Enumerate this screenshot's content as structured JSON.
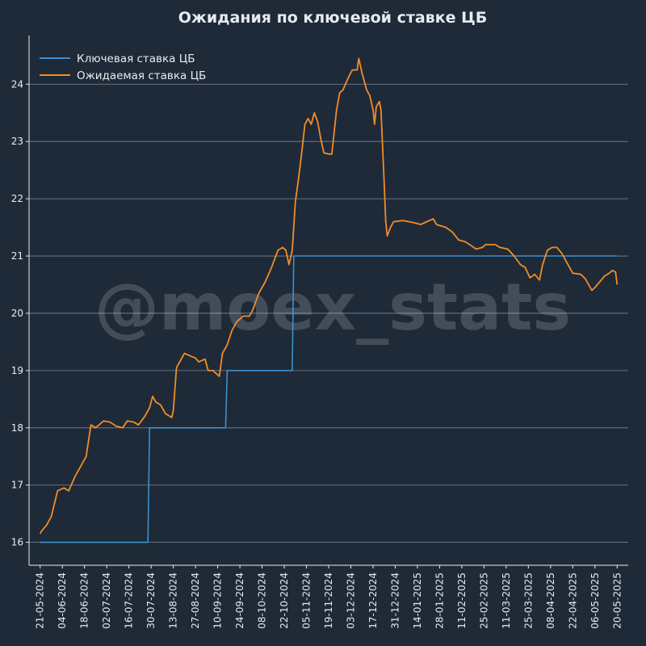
{
  "chart_data": {
    "type": "line",
    "title": "Ожидания по ключевой ставке ЦБ",
    "watermark": "@moex_stats",
    "xlabel": "",
    "ylabel": "",
    "ylim": [
      15.6,
      24.85
    ],
    "xlim": [
      "2024-05-14",
      "2025-05-27"
    ],
    "y_ticks": [
      16,
      17,
      18,
      19,
      20,
      21,
      22,
      23,
      24
    ],
    "x_ticks": [
      "21-05-2024",
      "04-06-2024",
      "18-06-2024",
      "02-07-2024",
      "16-07-2024",
      "30-07-2024",
      "13-08-2024",
      "27-08-2024",
      "10-09-2024",
      "24-09-2024",
      "08-10-2024",
      "22-10-2024",
      "05-11-2024",
      "19-11-2024",
      "03-12-2024",
      "17-12-2024",
      "31-12-2024",
      "14-01-2025",
      "28-01-2025",
      "11-02-2025",
      "25-02-2025",
      "11-03-2025",
      "25-03-2025",
      "08-04-2025",
      "22-04-2025",
      "06-05-2025",
      "20-05-2025"
    ],
    "grid": "horizontal",
    "legend_position": "top-left",
    "colors": {
      "background": "#1e2a38",
      "grid": "#7b8794",
      "axis": "#e6ebf0",
      "text": "#e6ebf0"
    },
    "series": [
      {
        "name": "Ключевая ставка ЦБ",
        "color": "#3d8fd1",
        "step": true,
        "points": [
          [
            "2024-05-21",
            16
          ],
          [
            "2024-07-28",
            16
          ],
          [
            "2024-07-29",
            18
          ],
          [
            "2024-09-15",
            18
          ],
          [
            "2024-09-16",
            19
          ],
          [
            "2024-10-27",
            19
          ],
          [
            "2024-10-28",
            21
          ],
          [
            "2025-05-20",
            21
          ]
        ]
      },
      {
        "name": "Ожидаемая ставка ЦБ",
        "color": "#f28c28",
        "step": false,
        "points": [
          [
            "2024-05-21",
            16.15
          ],
          [
            "2024-05-22",
            16.2
          ],
          [
            "2024-05-25",
            16.3
          ],
          [
            "2024-05-28",
            16.45
          ],
          [
            "2024-06-01",
            16.9
          ],
          [
            "2024-06-05",
            16.95
          ],
          [
            "2024-06-08",
            16.9
          ],
          [
            "2024-06-12",
            17.15
          ],
          [
            "2024-06-16",
            17.35
          ],
          [
            "2024-06-19",
            17.5
          ],
          [
            "2024-06-22",
            18.05
          ],
          [
            "2024-06-25",
            18.0
          ],
          [
            "2024-06-30",
            18.12
          ],
          [
            "2024-07-04",
            18.1
          ],
          [
            "2024-07-08",
            18.03
          ],
          [
            "2024-07-12",
            18.0
          ],
          [
            "2024-07-15",
            18.12
          ],
          [
            "2024-07-19",
            18.1
          ],
          [
            "2024-07-22",
            18.05
          ],
          [
            "2024-07-26",
            18.2
          ],
          [
            "2024-07-29",
            18.35
          ],
          [
            "2024-07-31",
            18.55
          ],
          [
            "2024-08-02",
            18.45
          ],
          [
            "2024-08-05",
            18.4
          ],
          [
            "2024-08-08",
            18.25
          ],
          [
            "2024-08-12",
            18.18
          ],
          [
            "2024-08-13",
            18.3
          ],
          [
            "2024-08-15",
            19.05
          ],
          [
            "2024-08-17",
            19.15
          ],
          [
            "2024-08-20",
            19.3
          ],
          [
            "2024-08-24",
            19.25
          ],
          [
            "2024-08-27",
            19.22
          ],
          [
            "2024-08-29",
            19.15
          ],
          [
            "2024-09-02",
            19.2
          ],
          [
            "2024-09-04",
            19.0
          ],
          [
            "2024-09-07",
            19.0
          ],
          [
            "2024-09-11",
            18.9
          ],
          [
            "2024-09-13",
            19.3
          ],
          [
            "2024-09-16",
            19.45
          ],
          [
            "2024-09-19",
            19.7
          ],
          [
            "2024-09-22",
            19.85
          ],
          [
            "2024-09-26",
            19.95
          ],
          [
            "2024-09-30",
            19.95
          ],
          [
            "2024-10-02",
            20.05
          ],
          [
            "2024-10-06",
            20.35
          ],
          [
            "2024-10-10",
            20.55
          ],
          [
            "2024-10-14",
            20.8
          ],
          [
            "2024-10-18",
            21.1
          ],
          [
            "2024-10-21",
            21.15
          ],
          [
            "2024-10-23",
            21.1
          ],
          [
            "2024-10-25",
            20.85
          ],
          [
            "2024-10-27",
            21.1
          ],
          [
            "2024-10-29",
            21.95
          ],
          [
            "2024-10-31",
            22.35
          ],
          [
            "2024-11-02",
            22.8
          ],
          [
            "2024-11-04",
            23.3
          ],
          [
            "2024-11-06",
            23.4
          ],
          [
            "2024-11-08",
            23.3
          ],
          [
            "2024-11-10",
            23.5
          ],
          [
            "2024-11-12",
            23.35
          ],
          [
            "2024-11-14",
            23.05
          ],
          [
            "2024-11-16",
            22.8
          ],
          [
            "2024-11-19",
            22.78
          ],
          [
            "2024-11-21",
            22.78
          ],
          [
            "2024-11-24",
            23.55
          ],
          [
            "2024-11-26",
            23.85
          ],
          [
            "2024-11-28",
            23.9
          ],
          [
            "2024-12-02",
            24.15
          ],
          [
            "2024-12-04",
            24.25
          ],
          [
            "2024-12-07",
            24.25
          ],
          [
            "2024-12-08",
            24.45
          ],
          [
            "2024-12-10",
            24.2
          ],
          [
            "2024-12-13",
            23.9
          ],
          [
            "2024-12-15",
            23.8
          ],
          [
            "2024-12-17",
            23.55
          ],
          [
            "2024-12-18",
            23.3
          ],
          [
            "2024-12-19",
            23.6
          ],
          [
            "2024-12-21",
            23.7
          ],
          [
            "2024-12-22",
            23.55
          ],
          [
            "2024-12-24",
            22.3
          ],
          [
            "2024-12-25",
            21.6
          ],
          [
            "2024-12-26",
            21.35
          ],
          [
            "2024-12-28",
            21.5
          ],
          [
            "2024-12-30",
            21.6
          ],
          [
            "2025-01-05",
            21.62
          ],
          [
            "2025-01-12",
            21.58
          ],
          [
            "2025-01-16",
            21.55
          ],
          [
            "2025-01-20",
            21.6
          ],
          [
            "2025-01-24",
            21.65
          ],
          [
            "2025-01-26",
            21.55
          ],
          [
            "2025-02-01",
            21.5
          ],
          [
            "2025-02-05",
            21.42
          ],
          [
            "2025-02-09",
            21.28
          ],
          [
            "2025-02-13",
            21.25
          ],
          [
            "2025-02-17",
            21.18
          ],
          [
            "2025-02-20",
            21.12
          ],
          [
            "2025-02-24",
            21.15
          ],
          [
            "2025-02-26",
            21.2
          ],
          [
            "2025-03-04",
            21.2
          ],
          [
            "2025-03-07",
            21.15
          ],
          [
            "2025-03-12",
            21.12
          ],
          [
            "2025-03-16",
            21.0
          ],
          [
            "2025-03-20",
            20.85
          ],
          [
            "2025-03-23",
            20.8
          ],
          [
            "2025-03-26",
            20.62
          ],
          [
            "2025-03-29",
            20.68
          ],
          [
            "2025-04-01",
            20.58
          ],
          [
            "2025-04-03",
            20.85
          ],
          [
            "2025-04-06",
            21.1
          ],
          [
            "2025-04-09",
            21.15
          ],
          [
            "2025-04-12",
            21.15
          ],
          [
            "2025-04-15",
            21.05
          ],
          [
            "2025-04-19",
            20.85
          ],
          [
            "2025-04-22",
            20.7
          ],
          [
            "2025-04-27",
            20.68
          ],
          [
            "2025-04-30",
            20.6
          ],
          [
            "2025-05-02",
            20.5
          ],
          [
            "2025-05-04",
            20.4
          ],
          [
            "2025-05-06",
            20.45
          ],
          [
            "2025-05-09",
            20.55
          ],
          [
            "2025-05-12",
            20.65
          ],
          [
            "2025-05-15",
            20.7
          ],
          [
            "2025-05-17",
            20.75
          ],
          [
            "2025-05-19",
            20.72
          ],
          [
            "2025-05-20",
            20.5
          ]
        ]
      }
    ]
  }
}
